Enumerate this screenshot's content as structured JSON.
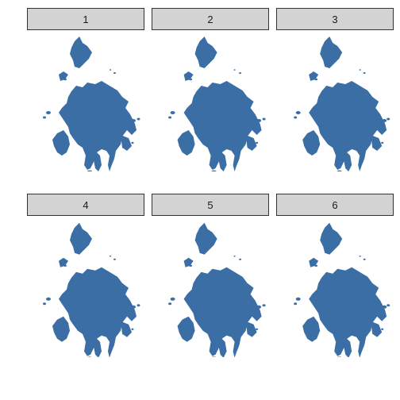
{
  "fill_color": "#3a6ea5",
  "strip_color": "#d3d3d3",
  "panels": [
    {
      "label": "1",
      "variant": 0
    },
    {
      "label": "2",
      "variant": 1
    },
    {
      "label": "3",
      "variant": 2
    },
    {
      "label": "4",
      "variant": 3
    },
    {
      "label": "5",
      "variant": 4
    },
    {
      "label": "6",
      "variant": 5
    }
  ]
}
